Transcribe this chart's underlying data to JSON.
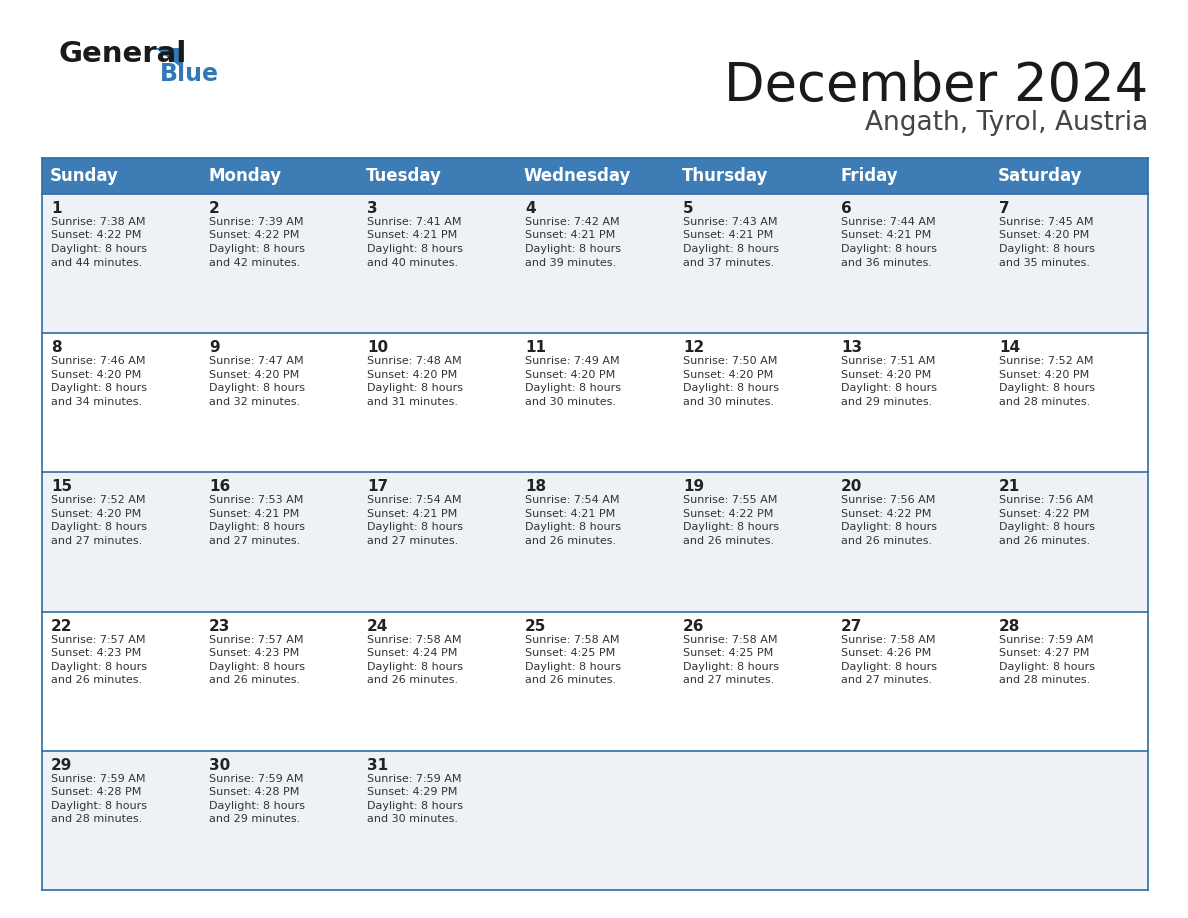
{
  "title": "December 2024",
  "subtitle": "Angath, Tyrol, Austria",
  "header_bg": "#3d7cb5",
  "header_text_color": "#ffffff",
  "cell_bg_light": "#eef2f7",
  "cell_bg_white": "#ffffff",
  "border_color": "#2e6da4",
  "day_headers": [
    "Sunday",
    "Monday",
    "Tuesday",
    "Wednesday",
    "Thursday",
    "Friday",
    "Saturday"
  ],
  "weeks": [
    [
      {
        "day": 1,
        "sunrise": "7:38 AM",
        "sunset": "4:22 PM",
        "daylight_suffix": "44 minutes."
      },
      {
        "day": 2,
        "sunrise": "7:39 AM",
        "sunset": "4:22 PM",
        "daylight_suffix": "42 minutes."
      },
      {
        "day": 3,
        "sunrise": "7:41 AM",
        "sunset": "4:21 PM",
        "daylight_suffix": "40 minutes."
      },
      {
        "day": 4,
        "sunrise": "7:42 AM",
        "sunset": "4:21 PM",
        "daylight_suffix": "39 minutes."
      },
      {
        "day": 5,
        "sunrise": "7:43 AM",
        "sunset": "4:21 PM",
        "daylight_suffix": "37 minutes."
      },
      {
        "day": 6,
        "sunrise": "7:44 AM",
        "sunset": "4:21 PM",
        "daylight_suffix": "36 minutes."
      },
      {
        "day": 7,
        "sunrise": "7:45 AM",
        "sunset": "4:20 PM",
        "daylight_suffix": "35 minutes."
      }
    ],
    [
      {
        "day": 8,
        "sunrise": "7:46 AM",
        "sunset": "4:20 PM",
        "daylight_suffix": "34 minutes."
      },
      {
        "day": 9,
        "sunrise": "7:47 AM",
        "sunset": "4:20 PM",
        "daylight_suffix": "32 minutes."
      },
      {
        "day": 10,
        "sunrise": "7:48 AM",
        "sunset": "4:20 PM",
        "daylight_suffix": "31 minutes."
      },
      {
        "day": 11,
        "sunrise": "7:49 AM",
        "sunset": "4:20 PM",
        "daylight_suffix": "30 minutes."
      },
      {
        "day": 12,
        "sunrise": "7:50 AM",
        "sunset": "4:20 PM",
        "daylight_suffix": "30 minutes."
      },
      {
        "day": 13,
        "sunrise": "7:51 AM",
        "sunset": "4:20 PM",
        "daylight_suffix": "29 minutes."
      },
      {
        "day": 14,
        "sunrise": "7:52 AM",
        "sunset": "4:20 PM",
        "daylight_suffix": "28 minutes."
      }
    ],
    [
      {
        "day": 15,
        "sunrise": "7:52 AM",
        "sunset": "4:20 PM",
        "daylight_suffix": "27 minutes."
      },
      {
        "day": 16,
        "sunrise": "7:53 AM",
        "sunset": "4:21 PM",
        "daylight_suffix": "27 minutes."
      },
      {
        "day": 17,
        "sunrise": "7:54 AM",
        "sunset": "4:21 PM",
        "daylight_suffix": "27 minutes."
      },
      {
        "day": 18,
        "sunrise": "7:54 AM",
        "sunset": "4:21 PM",
        "daylight_suffix": "26 minutes."
      },
      {
        "day": 19,
        "sunrise": "7:55 AM",
        "sunset": "4:22 PM",
        "daylight_suffix": "26 minutes."
      },
      {
        "day": 20,
        "sunrise": "7:56 AM",
        "sunset": "4:22 PM",
        "daylight_suffix": "26 minutes."
      },
      {
        "day": 21,
        "sunrise": "7:56 AM",
        "sunset": "4:22 PM",
        "daylight_suffix": "26 minutes."
      }
    ],
    [
      {
        "day": 22,
        "sunrise": "7:57 AM",
        "sunset": "4:23 PM",
        "daylight_suffix": "26 minutes."
      },
      {
        "day": 23,
        "sunrise": "7:57 AM",
        "sunset": "4:23 PM",
        "daylight_suffix": "26 minutes."
      },
      {
        "day": 24,
        "sunrise": "7:58 AM",
        "sunset": "4:24 PM",
        "daylight_suffix": "26 minutes."
      },
      {
        "day": 25,
        "sunrise": "7:58 AM",
        "sunset": "4:25 PM",
        "daylight_suffix": "26 minutes."
      },
      {
        "day": 26,
        "sunrise": "7:58 AM",
        "sunset": "4:25 PM",
        "daylight_suffix": "27 minutes."
      },
      {
        "day": 27,
        "sunrise": "7:58 AM",
        "sunset": "4:26 PM",
        "daylight_suffix": "27 minutes."
      },
      {
        "day": 28,
        "sunrise": "7:59 AM",
        "sunset": "4:27 PM",
        "daylight_suffix": "28 minutes."
      }
    ],
    [
      {
        "day": 29,
        "sunrise": "7:59 AM",
        "sunset": "4:28 PM",
        "daylight_suffix": "28 minutes."
      },
      {
        "day": 30,
        "sunrise": "7:59 AM",
        "sunset": "4:28 PM",
        "daylight_suffix": "29 minutes."
      },
      {
        "day": 31,
        "sunrise": "7:59 AM",
        "sunset": "4:29 PM",
        "daylight_suffix": "30 minutes."
      },
      null,
      null,
      null,
      null
    ]
  ]
}
